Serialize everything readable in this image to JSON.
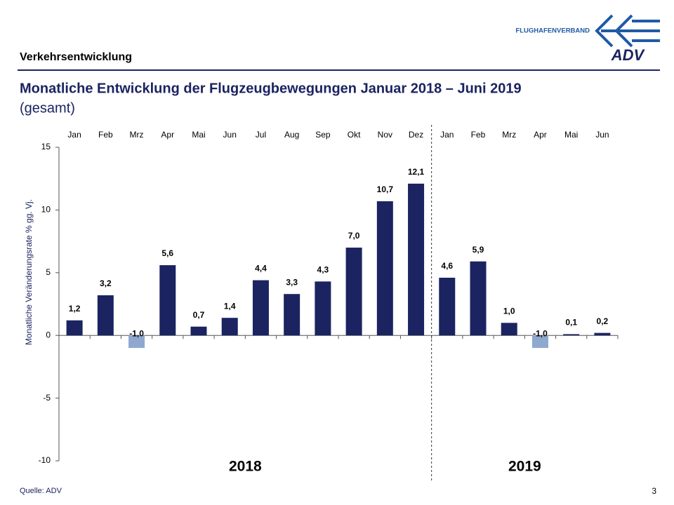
{
  "header": {
    "section": "Verkehrsentwicklung",
    "logo_text": "FLUGHAFENVERBAND",
    "logo_mark": "ADV"
  },
  "footer": {
    "source": "Quelle: ADV",
    "page_number": "3"
  },
  "chart_data": {
    "type": "bar",
    "title": "Monatliche Entwicklung der Flugzeugbewegungen Januar 2018 – Juni 2019",
    "subtitle": "(gesamt)",
    "y_label": "Monatliche Veränderungsrate % gg. Vj.",
    "ylim": [
      -10,
      15
    ],
    "yticks": [
      15,
      10,
      5,
      0,
      -5,
      -10
    ],
    "color": "#1b2461",
    "negative_color": "#8fa8cf",
    "grid": false,
    "groups": [
      {
        "label": "2018",
        "categories": [
          "Jan",
          "Feb",
          "Mrz",
          "Apr",
          "Mai",
          "Jun",
          "Jul",
          "Aug",
          "Sep",
          "Okt",
          "Nov",
          "Dez"
        ],
        "values": [
          1.2,
          3.2,
          -1.0,
          5.6,
          0.7,
          1.4,
          4.4,
          3.3,
          4.3,
          7.0,
          10.7,
          12.1
        ],
        "value_labels": [
          "1,2",
          "3,2",
          "-1,0",
          "5,6",
          "0,7",
          "1,4",
          "4,4",
          "3,3",
          "4,3",
          "7,0",
          "10,7",
          "12,1"
        ]
      },
      {
        "label": "2019",
        "categories": [
          "Jan",
          "Feb",
          "Mrz",
          "Apr",
          "Mai",
          "Jun"
        ],
        "values": [
          4.6,
          5.9,
          1.0,
          -1.0,
          0.1,
          0.2
        ],
        "value_labels": [
          "4,6",
          "5,9",
          "1,0",
          "-1,0",
          "0,1",
          "0,2"
        ]
      }
    ]
  }
}
